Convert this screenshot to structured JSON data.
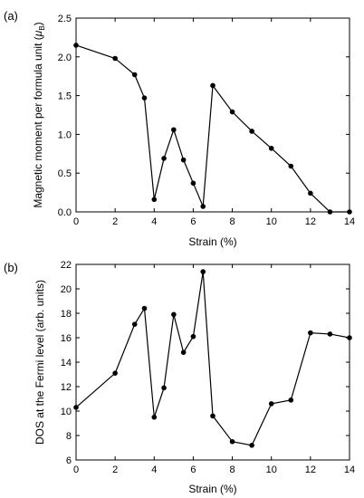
{
  "chart_data": [
    {
      "type": "line",
      "panel_label": "(a)",
      "xlabel": "Strain (%)",
      "ylabel_main": "Magnetic moment per formula unit (",
      "ylabel_mu": "μ",
      "ylabel_sub": "B",
      "ylabel_close": ")",
      "xlim": [
        0,
        14
      ],
      "ylim": [
        0.0,
        2.5
      ],
      "xticks": [
        0,
        2,
        4,
        6,
        8,
        10,
        12,
        14
      ],
      "yticks": [
        "0.0",
        "0.5",
        "1.0",
        "1.5",
        "2.0",
        "2.5"
      ],
      "ytick_values": [
        0.0,
        0.5,
        1.0,
        1.5,
        2.0,
        2.5
      ],
      "grid": false,
      "series": [
        {
          "x": [
            0,
            2,
            3,
            3.5,
            4,
            4.5,
            5,
            5.5,
            6,
            6.5,
            7,
            8,
            9,
            10,
            11,
            12,
            13,
            14
          ],
          "y": [
            2.15,
            1.98,
            1.77,
            1.47,
            0.16,
            0.69,
            1.06,
            0.67,
            0.37,
            0.07,
            1.63,
            1.29,
            1.04,
            0.82,
            0.59,
            0.24,
            0.0,
            0.0
          ]
        }
      ]
    },
    {
      "type": "line",
      "panel_label": "(b)",
      "xlabel": "Strain (%)",
      "ylabel_main": "DOS at the Fermi level (arb. units)",
      "xlim": [
        0,
        14
      ],
      "ylim": [
        6,
        22
      ],
      "xticks": [
        0,
        2,
        4,
        6,
        8,
        10,
        12,
        14
      ],
      "yticks": [
        "6",
        "8",
        "10",
        "12",
        "14",
        "16",
        "18",
        "20",
        "22"
      ],
      "ytick_values": [
        6,
        8,
        10,
        12,
        14,
        16,
        18,
        20,
        22
      ],
      "grid": false,
      "series": [
        {
          "x": [
            0,
            2,
            3,
            3.5,
            4,
            4.5,
            5,
            5.5,
            6,
            6.5,
            7,
            8,
            9,
            10,
            11,
            12,
            13,
            14
          ],
          "y": [
            10.3,
            13.1,
            17.1,
            18.4,
            9.5,
            11.9,
            17.9,
            14.8,
            16.1,
            21.4,
            9.6,
            7.5,
            7.2,
            10.6,
            10.9,
            16.4,
            16.3,
            16.0
          ]
        }
      ]
    }
  ]
}
